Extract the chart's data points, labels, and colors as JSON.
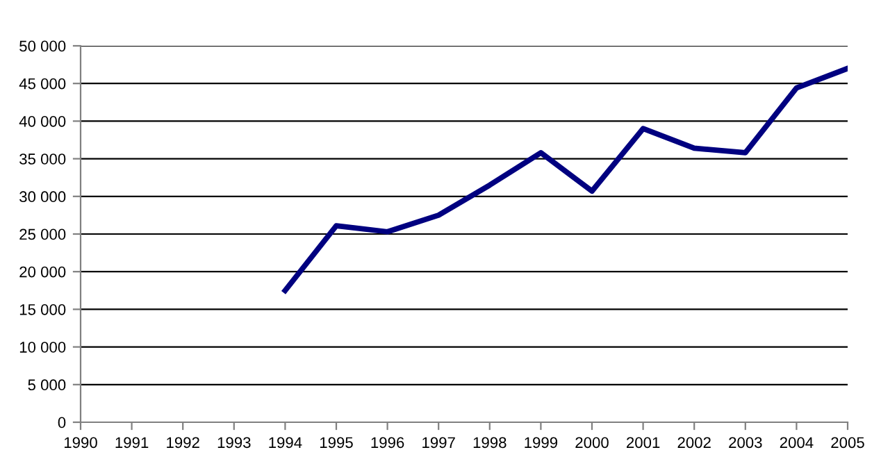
{
  "chart_data": {
    "type": "line",
    "x": [
      1994,
      1995,
      1996,
      1997,
      1998,
      1999,
      2000,
      2001,
      2002,
      2003,
      2004,
      2005
    ],
    "series": [
      {
        "color": "#000080",
        "values": [
          17500,
          26100,
          25300,
          27500,
          31500,
          35800,
          30700,
          39000,
          36400,
          35800,
          44400,
          47000
        ]
      }
    ],
    "xlim": [
      1990,
      2005
    ],
    "xticks": [
      1990,
      1991,
      1992,
      1993,
      1994,
      1995,
      1996,
      1997,
      1998,
      1999,
      2000,
      2001,
      2002,
      2003,
      2004,
      2005
    ],
    "ylim": [
      0,
      50000
    ],
    "yticks": [
      0,
      {
        "value": 5000,
        "label": "5 000"
      },
      {
        "value": 10000,
        "label": "10 000"
      },
      {
        "value": 15000,
        "label": "15 000"
      },
      {
        "value": 20000,
        "label": "20 000"
      },
      {
        "value": 25000,
        "label": "25 000"
      },
      {
        "value": 30000,
        "label": "30 000"
      },
      {
        "value": 35000,
        "label": "35 000"
      },
      {
        "value": 40000,
        "label": "40 000"
      },
      {
        "value": 45000,
        "label": "45 000"
      },
      {
        "value": 50000,
        "label": "50 000"
      }
    ],
    "grid": "y",
    "legend": false,
    "marker": "none",
    "line_style": "solid"
  }
}
